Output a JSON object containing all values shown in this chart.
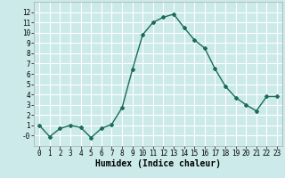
{
  "x": [
    0,
    1,
    2,
    3,
    4,
    5,
    6,
    7,
    8,
    9,
    10,
    11,
    12,
    13,
    14,
    15,
    16,
    17,
    18,
    19,
    20,
    21,
    22,
    23
  ],
  "y": [
    1,
    -0.1,
    0.7,
    1.0,
    0.8,
    -0.2,
    0.7,
    1.1,
    2.7,
    6.4,
    9.8,
    11.0,
    11.5,
    11.8,
    10.5,
    9.3,
    8.5,
    6.5,
    4.8,
    3.7,
    3.0,
    2.4,
    3.8,
    3.8
  ],
  "line_color": "#1a6b5a",
  "marker": "D",
  "marker_size": 2,
  "linewidth": 1.0,
  "xlabel": "Humidex (Indice chaleur)",
  "xlim": [
    -0.5,
    23.5
  ],
  "ylim": [
    -1,
    13
  ],
  "yticks": [
    0,
    1,
    2,
    3,
    4,
    5,
    6,
    7,
    8,
    9,
    10,
    11,
    12
  ],
  "xticks": [
    0,
    1,
    2,
    3,
    4,
    5,
    6,
    7,
    8,
    9,
    10,
    11,
    12,
    13,
    14,
    15,
    16,
    17,
    18,
    19,
    20,
    21,
    22,
    23
  ],
  "bg_color": "#cceaea",
  "grid_color": "#ffffff",
  "tick_label_fontsize": 5.5,
  "xlabel_fontsize": 7,
  "ytick_labels": [
    "-0",
    "1",
    "2",
    "3",
    "4",
    "5",
    "6",
    "7",
    "8",
    "9",
    "10",
    "11",
    "12"
  ]
}
